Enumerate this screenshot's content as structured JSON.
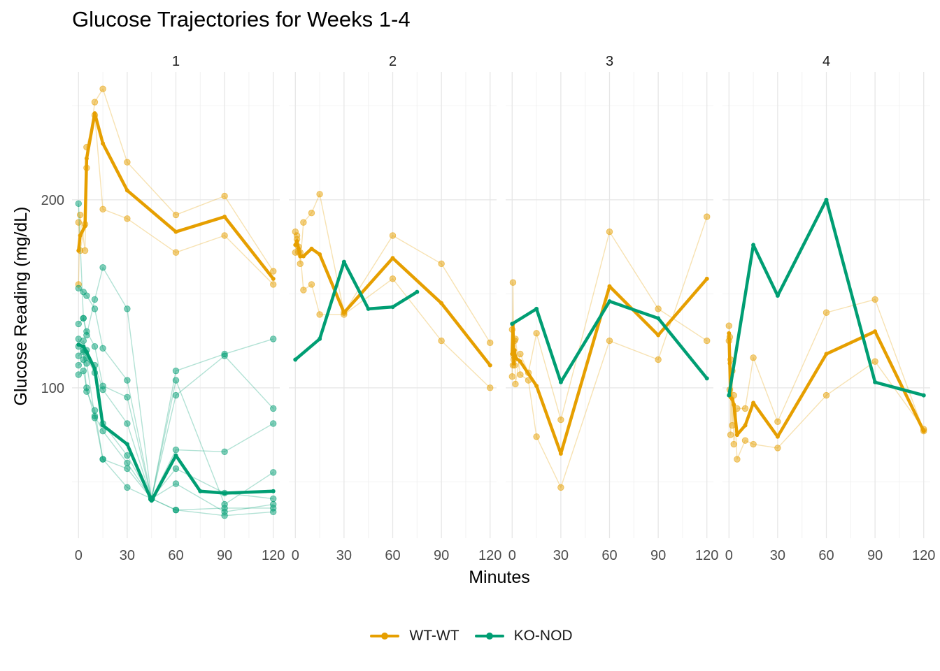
{
  "chart_title": "Glucose Trajectories for Weeks 1-4",
  "chart_data": {
    "type": "line",
    "title": "Glucose Trajectories for Weeks 1-4",
    "xlabel": "Minutes",
    "ylabel": "Glucose Reading (mg/dL)",
    "xlim": [
      -4,
      124
    ],
    "ylim": [
      20,
      268
    ],
    "x_ticks": [
      0,
      30,
      60,
      90,
      120
    ],
    "y_ticks": [
      100,
      200
    ],
    "grid": true,
    "legend_position": "bottom",
    "colors": {
      "WT-WT": "#e69f00",
      "KO-NOD": "#009e73"
    },
    "legend": [
      {
        "name": "WT-WT",
        "color": "#e69f00"
      },
      {
        "name": "KO-NOD",
        "color": "#009e73"
      }
    ],
    "panels": [
      {
        "label": "1",
        "mean": [
          {
            "group": "WT-WT",
            "x": [
              0,
              1,
              4,
              5,
              10,
              15,
              30,
              60,
              90,
              120
            ],
            "y": [
              173,
              181,
              186,
              222,
              246,
              230,
              205,
              183,
              191,
              158
            ]
          },
          {
            "group": "KO-NOD",
            "x": [
              0,
              3,
              5,
              10,
              15,
              30,
              45,
              60,
              75,
              90,
              120
            ],
            "y": [
              123,
              122,
              119,
              110,
              80,
              70,
              40,
              64,
              45,
              44,
              45
            ]
          }
        ],
        "individuals": [
          {
            "group": "WT-WT",
            "x": [
              0,
              1,
              4,
              5,
              10,
              15,
              30,
              60,
              90,
              120
            ],
            "y": [
              155,
              192,
              173,
              217,
              252,
              259,
              220,
              192,
              202,
              162
            ]
          },
          {
            "group": "WT-WT",
            "x": [
              0,
              1,
              4,
              5,
              10,
              15,
              30,
              60,
              90,
              120
            ],
            "y": [
              188,
              173,
              187,
              228,
              245,
              195,
              190,
              172,
              181,
              155
            ]
          },
          {
            "group": "KO-NOD",
            "x": [
              0,
              3,
              5,
              10,
              15,
              30,
              45,
              60,
              90,
              120
            ],
            "y": [
              198,
              137,
              128,
              147,
              164,
              142,
              41,
              109,
              118,
              126
            ]
          },
          {
            "group": "KO-NOD",
            "x": [
              0,
              3,
              5,
              10,
              15,
              30,
              45,
              60,
              90,
              120
            ],
            "y": [
              153,
              151,
              149,
              142,
              121,
              104,
              41,
              96,
              117,
              89
            ]
          },
          {
            "group": "KO-NOD",
            "x": [
              0,
              3,
              5,
              10,
              15,
              30,
              45,
              60,
              90,
              120
            ],
            "y": [
              134,
              137,
              130,
              122,
              101,
              95,
              41,
              67,
              66,
              81
            ]
          },
          {
            "group": "KO-NOD",
            "x": [
              0,
              3,
              5,
              10,
              15,
              30,
              45,
              60,
              90,
              120
            ],
            "y": [
              122,
              125,
              120,
              112,
              99,
              81,
              41,
              104,
              38,
              55
            ]
          },
          {
            "group": "KO-NOD",
            "x": [
              0,
              3,
              5,
              10,
              15,
              30,
              45,
              60,
              90,
              120
            ],
            "y": [
              117,
              120,
              116,
              108,
              81,
              64,
              41,
              57,
              44,
              41
            ]
          },
          {
            "group": "KO-NOD",
            "x": [
              0,
              3,
              5,
              10,
              15,
              30,
              45,
              60,
              90,
              120
            ],
            "y": [
              112,
              115,
              113,
              85,
              77,
              60,
              41,
              49,
              34,
              38
            ]
          },
          {
            "group": "KO-NOD",
            "x": [
              0,
              3,
              5,
              10,
              15,
              30,
              45,
              60,
              90,
              120
            ],
            "y": [
              107,
              109,
              100,
              84,
              62,
              57,
              41,
              35,
              36,
              36
            ]
          },
          {
            "group": "KO-NOD",
            "x": [
              0,
              3,
              5,
              10,
              15,
              30,
              45,
              60,
              90,
              120
            ],
            "y": [
              126,
              119,
              98,
              88,
              62,
              47,
              41,
              35,
              32,
              34
            ]
          }
        ]
      },
      {
        "label": "2",
        "mean": [
          {
            "group": "WT-WT",
            "x": [
              0,
              1,
              2,
              3,
              5,
              10,
              15,
              30,
              60,
              90,
              120
            ],
            "y": [
              176,
              178,
              174,
              170,
              170,
              174,
              171,
              140,
              169,
              145,
              112
            ]
          },
          {
            "group": "KO-NOD",
            "x": [
              0,
              15,
              30,
              45,
              60,
              75
            ],
            "y": [
              115,
              126,
              167,
              142,
              143,
              151
            ]
          }
        ],
        "individuals": [
          {
            "group": "WT-WT",
            "x": [
              0,
              1,
              2,
              3,
              5,
              10,
              15,
              30,
              60,
              90,
              120
            ],
            "y": [
              183,
              181,
              172,
              166,
              188,
              193,
              203,
              140,
              181,
              166,
              124
            ]
          },
          {
            "group": "WT-WT",
            "x": [
              0,
              1,
              2,
              3,
              5,
              10,
              15,
              30,
              60,
              90,
              120
            ],
            "y": [
              172,
              179,
              175,
              172,
              152,
              155,
              139,
              139,
              158,
              125,
              100
            ]
          }
        ]
      },
      {
        "label": "3",
        "mean": [
          {
            "group": "WT-WT",
            "x": [
              0,
              0.5,
              1,
              1.5,
              2,
              5,
              15,
              30,
              60,
              90,
              120
            ],
            "y": [
              118,
              134,
              113,
              120,
              116,
              114,
              101,
              65,
              154,
              128,
              158
            ]
          },
          {
            "group": "KO-NOD",
            "x": [
              0,
              15,
              30,
              60,
              90,
              120
            ],
            "y": [
              134,
              142,
              103,
              146,
              137,
              105
            ]
          }
        ],
        "individuals": [
          {
            "group": "WT-WT",
            "x": [
              0,
              0.5,
              1,
              1.5,
              2,
              5,
              10,
              15,
              30,
              60,
              90,
              120
            ],
            "y": [
              106,
              156,
              117,
              125,
              102,
              118,
              108,
              129,
              83,
              183,
              142,
              125
            ]
          },
          {
            "group": "WT-WT",
            "x": [
              0,
              0.5,
              1,
              1.5,
              2,
              5,
              10,
              15,
              30,
              60,
              90,
              120
            ],
            "y": [
              131,
              112,
              115,
              112,
              126,
              107,
              104,
              74,
              47,
              125,
              115,
              191
            ]
          }
        ]
      },
      {
        "label": "4",
        "mean": [
          {
            "group": "WT-WT",
            "x": [
              0,
              0.5,
              1,
              2,
              3,
              5,
              10,
              15,
              30,
              60,
              90,
              120
            ],
            "y": [
              129,
              113,
              95,
              94,
              91,
              75,
              80,
              92,
              74,
              118,
              130,
              77
            ]
          },
          {
            "group": "KO-NOD",
            "x": [
              0,
              15,
              30,
              60,
              90,
              120
            ],
            "y": [
              96,
              176,
              149,
              200,
              103,
              96
            ]
          }
        ],
        "individuals": [
          {
            "group": "WT-WT",
            "x": [
              0,
              0.5,
              1,
              2,
              3,
              5,
              10,
              15,
              30,
              60,
              90,
              120
            ],
            "y": [
              133,
              127,
              75,
              109,
              70,
              89,
              89,
              116,
              82,
              140,
              147,
              77
            ]
          },
          {
            "group": "WT-WT",
            "x": [
              0,
              0.5,
              1,
              2,
              3,
              5,
              10,
              15,
              30,
              60,
              90,
              120
            ],
            "y": [
              125,
              99,
              115,
              80,
              96,
              62,
              72,
              70,
              68,
              96,
              114,
              78
            ]
          }
        ]
      }
    ]
  }
}
